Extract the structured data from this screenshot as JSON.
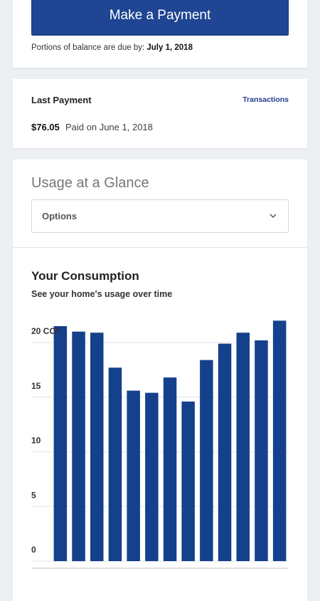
{
  "payment": {
    "button_label": "Make a Payment",
    "due_text": "Portions of balance are due by:",
    "due_date": "July 1, 2018"
  },
  "last_payment": {
    "title": "Last Payment",
    "transactions_link": "Transactions",
    "amount": "$76.05",
    "paid_text": "Paid on June 1, 2018"
  },
  "usage": {
    "title": "Usage at a Glance",
    "options_label": "Options",
    "options_icon": "chevron-down-icon"
  },
  "consumption": {
    "title": "Your Consumption",
    "subtitle": "See your home's usage over time"
  },
  "colors": {
    "bar": "#15408c",
    "grid": "#e3e5e8",
    "button": "#1f4593"
  },
  "chart_data": {
    "type": "bar",
    "ylim": [
      0,
      21.5
    ],
    "yticks": [
      "0",
      "5",
      "10",
      "15",
      "20 CCF"
    ],
    "ytick_values": [
      0,
      5,
      10,
      15,
      20
    ],
    "values": [
      21.5,
      21,
      20.9,
      17.7,
      15.6,
      15.4,
      16.8,
      14.6,
      18.4,
      19.9,
      20.9,
      20.2,
      22
    ]
  }
}
